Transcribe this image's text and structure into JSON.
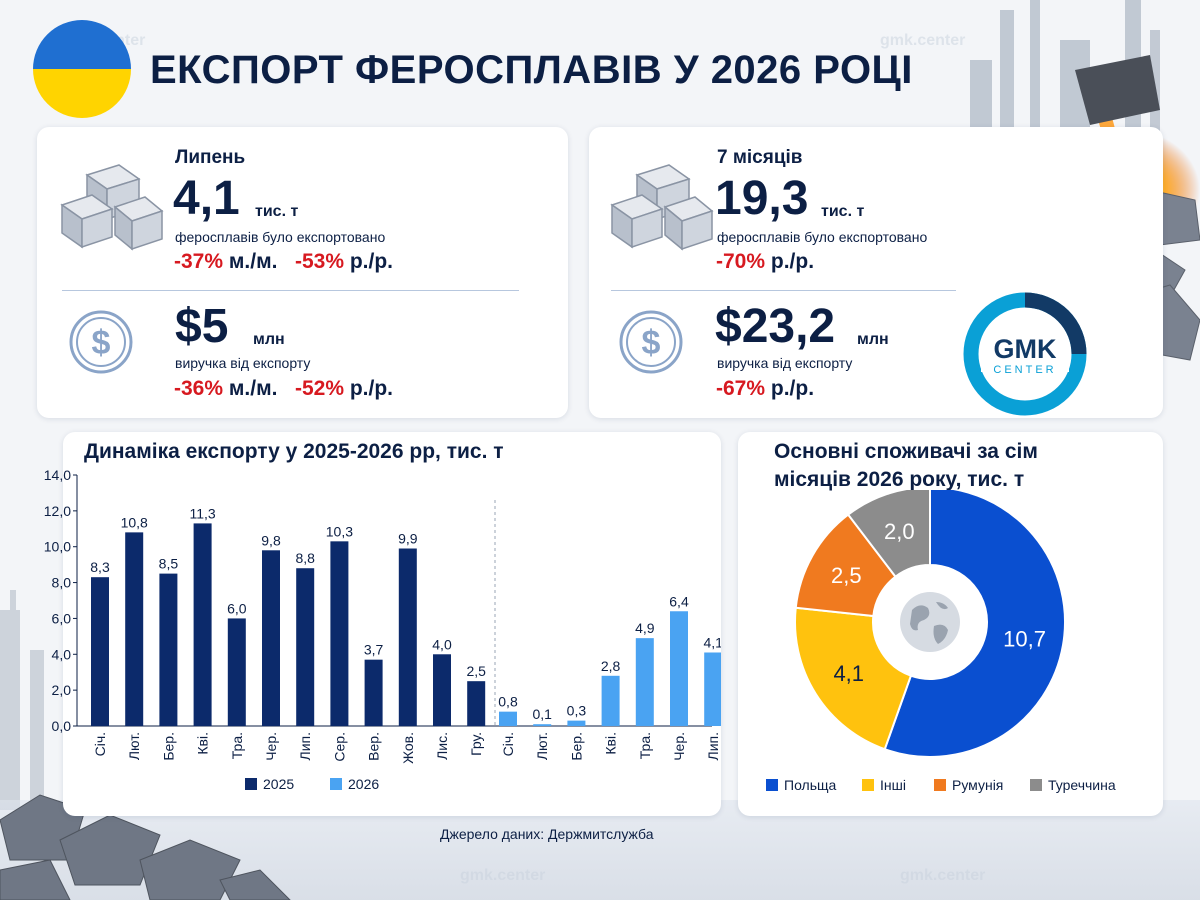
{
  "header": {
    "title": "ЕКСПОРТ ФЕРОСПЛАВІВ У 2026 РОЦІ",
    "flag_colors": [
      "#1f6fd1",
      "#ffd400"
    ]
  },
  "stats": {
    "july": {
      "label": "Липень",
      "volume_value": "4,1",
      "volume_unit": "тис. т",
      "volume_desc": "феросплавів було експортовано",
      "volume_mm": "-37%",
      "volume_mm_suffix": "м./м.",
      "volume_yy": "-53%",
      "volume_yy_suffix": "р./р.",
      "revenue_value": "$5",
      "revenue_unit": "млн",
      "revenue_desc": "виручка від експорту",
      "revenue_mm": "-36%",
      "revenue_mm_suffix": "м./м.",
      "revenue_yy": "-52%",
      "revenue_yy_suffix": "р./р."
    },
    "seven_months": {
      "label": "7 місяців",
      "volume_value": "19,3",
      "volume_unit": "тис. т",
      "volume_desc": "феросплавів було експортовано",
      "volume_yy": "-70%",
      "volume_yy_suffix": "р./р.",
      "revenue_value": "$23,2",
      "revenue_unit": "млн",
      "revenue_desc": "виручка від експорту",
      "revenue_yy": "-67%",
      "revenue_yy_suffix": "р./р."
    }
  },
  "logo": {
    "line1": "GMK",
    "line2": "CENTER",
    "color": "#0aa0d6",
    "dark": "#123a66"
  },
  "watermark": "gmk.center",
  "bar_title": "Динаміка експорту у 2025-2026 рр, тис. т",
  "pie_title_line1": "Основні споживачі за сім",
  "pie_title_line2": "місяців 2026 року, тис. т",
  "source": "Джерело даних: Держмитслужба",
  "chart_data": [
    {
      "type": "bar",
      "title": "Динаміка експорту у 2025-2026 рр, тис. т",
      "ylim": [
        0,
        14
      ],
      "yticks": [
        "0,0",
        "2,0",
        "4,0",
        "6,0",
        "8,0",
        "10,0",
        "12,0",
        "14,0"
      ],
      "grid": false,
      "legend": "bottom",
      "series": [
        {
          "name": "2025",
          "color": "#0c2a6b",
          "categories": [
            "Січ.",
            "Лют.",
            "Бер.",
            "Кві.",
            "Тра.",
            "Чер.",
            "Лип.",
            "Сер.",
            "Вер.",
            "Жов.",
            "Лис.",
            "Гру."
          ],
          "values": [
            8.3,
            10.8,
            8.5,
            11.3,
            6.0,
            9.8,
            8.8,
            10.3,
            3.7,
            9.9,
            4.0,
            2.5
          ],
          "labels": [
            "8,3",
            "10,8",
            "8,5",
            "11,3",
            "6,0",
            "9,8",
            "8,8",
            "10,3",
            "3,7",
            "9,9",
            "4,0",
            "2,5"
          ]
        },
        {
          "name": "2026",
          "color": "#4aa3f2",
          "categories": [
            "Січ.",
            "Лют.",
            "Бер.",
            "Кві.",
            "Тра.",
            "Чер.",
            "Лип."
          ],
          "values": [
            0.8,
            0.1,
            0.3,
            2.8,
            4.9,
            6.4,
            4.1
          ],
          "labels": [
            "0,8",
            "0,1",
            "0,3",
            "2,8",
            "4,9",
            "6,4",
            "4,1"
          ]
        }
      ]
    },
    {
      "type": "pie",
      "title": "Основні споживачі за сім місяців 2026 року, тис. т",
      "legend": "bottom",
      "slices": [
        {
          "name": "Польща",
          "value": 10.7,
          "label": "10,7",
          "color": "#0a4fd0"
        },
        {
          "name": "Інші",
          "value": 4.1,
          "label": "4,1",
          "color": "#ffc20e"
        },
        {
          "name": "Румунія",
          "value": 2.5,
          "label": "2,5",
          "color": "#f07a1f"
        },
        {
          "name": "Туреччина",
          "value": 2.0,
          "label": "2,0",
          "color": "#8c8c8c"
        }
      ]
    }
  ]
}
